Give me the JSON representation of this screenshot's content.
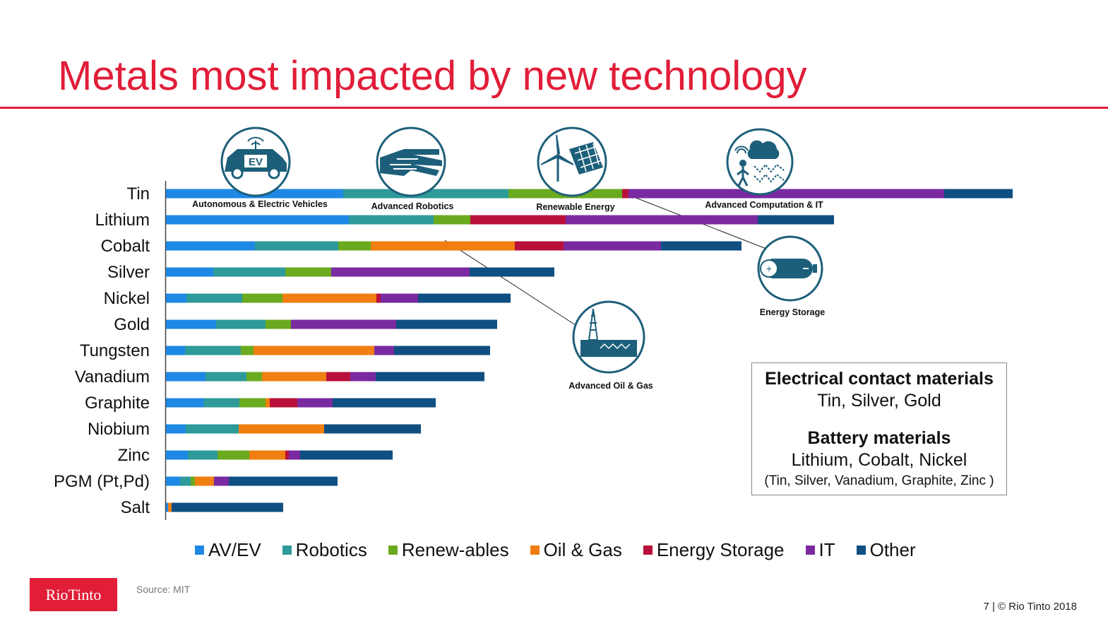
{
  "title": "Metals most impacted by new technology",
  "colors": {
    "AV/EV": "#1e88e5",
    "Robotics": "#2e9a9a",
    "Renew-ables": "#6aaa1e",
    "Oil & Gas": "#f07e11",
    "Energy Storage": "#b8103a",
    "IT": "#7a2aa0",
    "Other": "#0f4f82",
    "icon": "#1d5f7a"
  },
  "icons": [
    {
      "name": "av-ev-icon",
      "label": "Autonomous & Electric Vehicles",
      "text": "EV"
    },
    {
      "name": "robotics-icon",
      "label": "Advanced Robotics",
      "text": ""
    },
    {
      "name": "renewable-energy-icon",
      "label": "Renewable Energy",
      "text": ""
    },
    {
      "name": "computation-it-icon",
      "label": "Advanced Computation & IT",
      "text": ""
    },
    {
      "name": "energy-storage-icon",
      "label": "Energy Storage",
      "text": ""
    },
    {
      "name": "oil-gas-icon",
      "label": "Advanced Oil & Gas",
      "text": ""
    }
  ],
  "chart_data": {
    "type": "bar",
    "orientation": "horizontal",
    "stacked": true,
    "categories": [
      "Tin",
      "Lithium",
      "Cobalt",
      "Silver",
      "Nickel",
      "Gold",
      "Tungsten",
      "Vanadium",
      "Graphite",
      "Niobium",
      "Zinc",
      "PGM (Pt,Pd)",
      "Salt"
    ],
    "series": [
      {
        "name": "AV/EV",
        "values": [
          251,
          259,
          126,
          67,
          29,
          71,
          27,
          56,
          53,
          28,
          31,
          20,
          3
        ]
      },
      {
        "name": "Robotics",
        "values": [
          234,
          120,
          118,
          102,
          79,
          70,
          79,
          58,
          51,
          75,
          42,
          15,
          0
        ]
      },
      {
        "name": "Renew-ables",
        "values": [
          161,
          52,
          46,
          65,
          57,
          36,
          18,
          22,
          37,
          0,
          45,
          6,
          0
        ]
      },
      {
        "name": "Oil & Gas",
        "values": [
          0,
          0,
          204,
          0,
          133,
          0,
          171,
          91,
          6,
          121,
          51,
          27,
          5
        ]
      },
      {
        "name": "Energy Storage",
        "values": [
          9,
          135,
          69,
          0,
          6,
          0,
          0,
          34,
          39,
          0,
          5,
          0,
          0
        ]
      },
      {
        "name": "IT",
        "values": [
          447,
          272,
          138,
          196,
          53,
          149,
          28,
          36,
          50,
          0,
          16,
          21,
          0
        ]
      },
      {
        "name": "Other",
        "values": [
          97,
          108,
          114,
          120,
          131,
          143,
          136,
          154,
          146,
          137,
          131,
          154,
          158
        ]
      }
    ],
    "legend_position": "bottom",
    "grid": false
  },
  "callout": {
    "heading1": "Electrical contact materials",
    "line1": "Tin, Silver, Gold",
    "heading2": "Battery materials",
    "line2": "Lithium, Cobalt, Nickel",
    "line3": "(Tin, Silver, Vanadium, Graphite, Zinc )"
  },
  "logo": "RioTinto",
  "source": "Source: MIT",
  "footer": "7 | © Rio Tinto 2018"
}
